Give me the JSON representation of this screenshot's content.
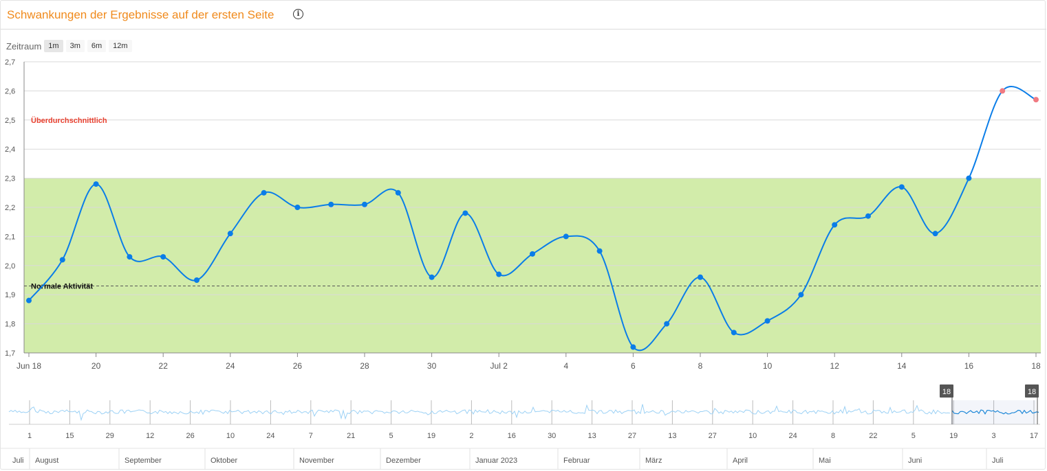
{
  "header": {
    "title": "Schwankungen der Ergebnisse auf der ersten Seite",
    "info_icon": "info-icon"
  },
  "range": {
    "label": "Zeitraum",
    "options": [
      "1m",
      "3m",
      "6m",
      "12m"
    ],
    "selected": "1m"
  },
  "colors": {
    "title": "#f08a1c",
    "line": "#0a7de8",
    "band": "#d2ecaa",
    "high_point": "#f07a82",
    "above_label": "#e8402f",
    "navigator_line": "#9cd1f5",
    "navigator_line_selected": "#1e88d8"
  },
  "chart_data": {
    "type": "line",
    "y_ticks": [
      "2,7",
      "2,6",
      "2,5",
      "2,4",
      "2,3",
      "2,2",
      "2,1",
      "2,0",
      "1,9",
      "1,8",
      "1,7"
    ],
    "ylim": [
      1.7,
      2.7
    ],
    "x_ticks": [
      "Jun 18",
      "20",
      "22",
      "24",
      "26",
      "28",
      "30",
      "Jul 2",
      "4",
      "6",
      "8",
      "10",
      "12",
      "14",
      "16",
      "18"
    ],
    "series": [
      {
        "x": [
          "2023-06-18",
          "2023-06-19",
          "2023-06-20",
          "2023-06-21",
          "2023-06-22",
          "2023-06-23",
          "2023-06-24",
          "2023-06-25",
          "2023-06-26",
          "2023-06-27",
          "2023-06-28",
          "2023-06-29",
          "2023-06-30",
          "2023-07-01",
          "2023-07-02",
          "2023-07-03",
          "2023-07-04",
          "2023-07-05",
          "2023-07-06",
          "2023-07-07",
          "2023-07-08",
          "2023-07-09",
          "2023-07-10",
          "2023-07-11",
          "2023-07-12",
          "2023-07-13",
          "2023-07-14",
          "2023-07-15",
          "2023-07-16",
          "2023-07-17",
          "2023-07-18"
        ],
        "values": [
          1.88,
          2.02,
          2.28,
          2.03,
          2.03,
          1.95,
          2.11,
          2.25,
          2.2,
          2.21,
          2.21,
          2.25,
          1.96,
          2.18,
          1.97,
          2.04,
          2.1,
          2.05,
          1.72,
          1.8,
          1.96,
          1.77,
          1.81,
          1.9,
          2.14,
          2.17,
          2.27,
          2.11,
          2.3,
          2.6,
          2.57
        ]
      }
    ],
    "normal_band": {
      "from": 1.7,
      "to": 2.3
    },
    "normal_line": {
      "value": 1.93,
      "label": "Normale Aktivität"
    },
    "above_label": "Überdurchschnittlich",
    "grid": true,
    "navigator": {
      "day_ticks": [
        "1",
        "15",
        "29",
        "12",
        "26",
        "10",
        "24",
        "7",
        "21",
        "5",
        "19",
        "2",
        "16",
        "30",
        "13",
        "27",
        "13",
        "27",
        "10",
        "24",
        "8",
        "22",
        "5",
        "19",
        "3",
        "17"
      ],
      "month_labels": [
        "Juli",
        "August",
        "September",
        "Oktober",
        "November",
        "Dezember",
        "Januar 2023",
        "Februar",
        "März",
        "April",
        "Mai",
        "Juni",
        "Juli"
      ],
      "handle_start": "18",
      "handle_end": "18"
    }
  }
}
